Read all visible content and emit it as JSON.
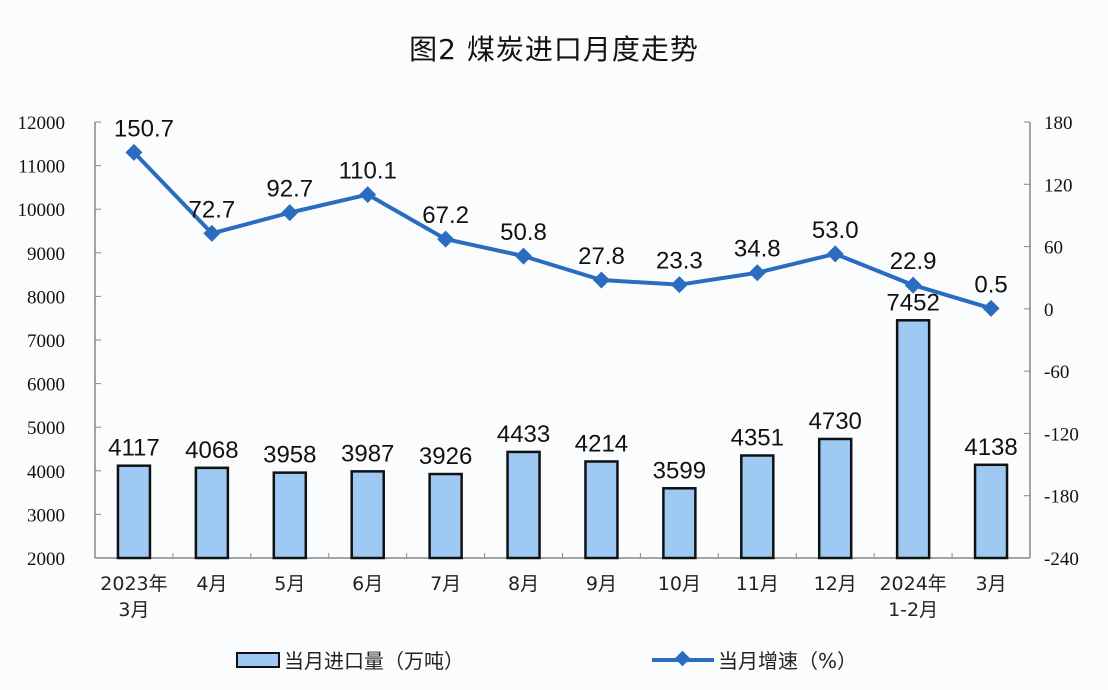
{
  "title": "图2  煤炭进口月度走势",
  "legend": {
    "bar_label": "当月进口量（万吨）",
    "line_label": "当月增速（%）"
  },
  "colors": {
    "bar_fill": "#9dc9f3",
    "bar_stroke": "#111111",
    "line": "#2a6cc0"
  },
  "chart_data": {
    "type": "bar+line",
    "title": "图2  煤炭进口月度走势",
    "categories": [
      "2023年\n3月",
      "4月",
      "5月",
      "6月",
      "7月",
      "8月",
      "9月",
      "10月",
      "11月",
      "12月",
      "2024年\n1-2月",
      "3月"
    ],
    "category_lines": [
      [
        "2023年",
        "3月"
      ],
      [
        "4月"
      ],
      [
        "5月"
      ],
      [
        "6月"
      ],
      [
        "7月"
      ],
      [
        "8月"
      ],
      [
        "9月"
      ],
      [
        "10月"
      ],
      [
        "11月"
      ],
      [
        "12月"
      ],
      [
        "2024年",
        "1-2月"
      ],
      [
        "3月"
      ]
    ],
    "series": [
      {
        "name": "当月进口量（万吨）",
        "type": "bar",
        "axis": "left",
        "values": [
          4117,
          4068,
          3958,
          3987,
          3926,
          4433,
          4214,
          3599,
          4351,
          4730,
          7452,
          4138
        ]
      },
      {
        "name": "当月增速（%）",
        "type": "line",
        "axis": "right",
        "values": [
          150.7,
          72.7,
          92.7,
          110.1,
          67.2,
          50.8,
          27.8,
          23.3,
          34.8,
          53.0,
          22.9,
          0.5
        ],
        "labels": [
          "150.7",
          "72.7",
          "92.7",
          "110.1",
          "67.2",
          "50.8",
          "27.8",
          "23.3",
          "34.8",
          "53.0",
          "22.9",
          "0.5"
        ]
      }
    ],
    "left_axis": {
      "ylim": [
        2000,
        12000
      ],
      "ticks": [
        2000,
        3000,
        4000,
        5000,
        6000,
        7000,
        8000,
        9000,
        10000,
        11000,
        12000
      ]
    },
    "right_axis": {
      "ylim": [
        -240,
        180
      ],
      "ticks": [
        -240,
        -180,
        -120,
        -60,
        0,
        60,
        120,
        180
      ]
    },
    "xlabel": "",
    "ylabel": "",
    "grid": false,
    "legend_position": "bottom"
  }
}
